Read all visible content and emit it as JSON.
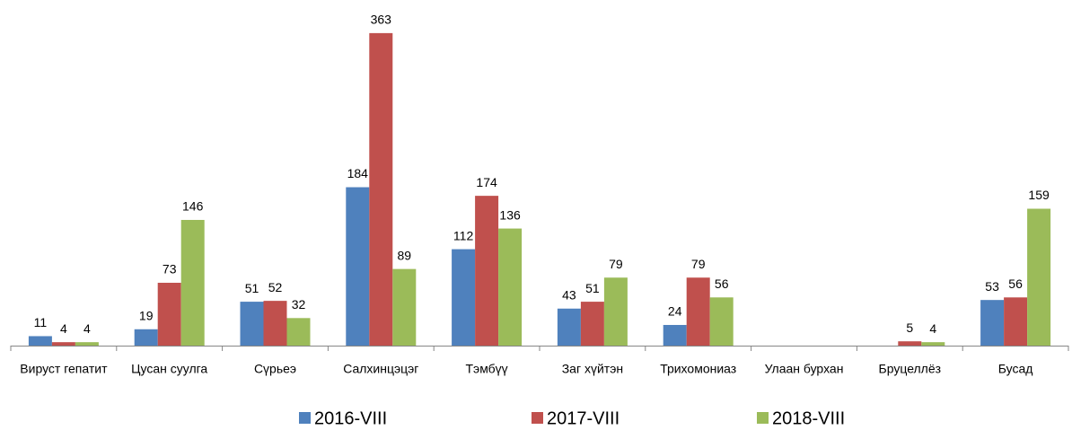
{
  "chart_data": {
    "type": "bar",
    "categories": [
      "Вируст гепатит",
      "Цусан суулга",
      "Сүрьеэ",
      "Салхинцэцэг",
      "Тэмбүү",
      "Заг хүйтэн",
      "Трихомониаз",
      "Улаан бурхан",
      "Бруцеллёз",
      "Бусад"
    ],
    "series": [
      {
        "name": "2016-VIII",
        "color": "#4f81bd",
        "values": [
          11,
          19,
          51,
          184,
          112,
          43,
          24,
          null,
          null,
          53
        ]
      },
      {
        "name": "2017-VIII",
        "color": "#c0504d",
        "values": [
          4,
          73,
          52,
          363,
          174,
          51,
          79,
          null,
          5,
          56
        ]
      },
      {
        "name": "2018-VIII",
        "color": "#9bbb59",
        "values": [
          4,
          146,
          32,
          89,
          136,
          79,
          56,
          null,
          4,
          159
        ]
      }
    ],
    "ylim": [
      0,
      400
    ],
    "legend": "bottom"
  }
}
